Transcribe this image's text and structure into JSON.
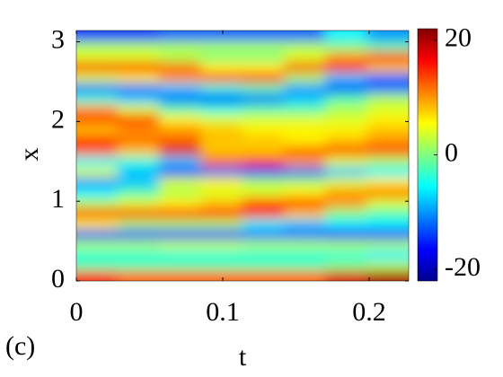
{
  "chart_data": {
    "type": "heatmap",
    "xlabel": "t",
    "ylabel": "x",
    "annotation": "(c)",
    "xlim": [
      0,
      0.227
    ],
    "ylim": [
      0,
      3.1416
    ],
    "xticks": [
      0,
      0.1,
      0.2
    ],
    "yticks": [
      0,
      1,
      2,
      3
    ],
    "clim": [
      -22,
      22
    ],
    "cticks": [
      -20,
      0,
      20
    ],
    "colormap": "jet",
    "x": [
      0.014,
      0.042,
      0.071,
      0.099,
      0.128,
      0.156,
      0.184,
      0.213
    ],
    "y": [
      0.065,
      0.196,
      0.327,
      0.458,
      0.589,
      0.72,
      0.851,
      0.982,
      1.113,
      1.244,
      1.374,
      1.505,
      1.636,
      1.767,
      1.898,
      2.029,
      2.16,
      2.291,
      2.422,
      2.553,
      2.683,
      2.814,
      2.945,
      3.076
    ],
    "z": [
      [
        15,
        12,
        12,
        12,
        12,
        12,
        18,
        20
      ],
      [
        -2,
        -2,
        -2,
        -2,
        -2,
        -2,
        0,
        2
      ],
      [
        -4,
        -4,
        -4,
        -4,
        -4,
        -4,
        -4,
        -6
      ],
      [
        2,
        2,
        3,
        3,
        2,
        2,
        2,
        2
      ],
      [
        -14,
        -14,
        -14,
        -14,
        -12,
        -12,
        -16,
        -16
      ],
      [
        6,
        2,
        2,
        2,
        -6,
        -8,
        -6,
        -6
      ],
      [
        14,
        16,
        16,
        16,
        14,
        8,
        0,
        -2
      ],
      [
        2,
        4,
        6,
        8,
        14,
        16,
        10,
        4
      ],
      [
        -6,
        -2,
        2,
        4,
        4,
        6,
        10,
        12
      ],
      [
        -10,
        -8,
        4,
        6,
        2,
        2,
        4,
        6
      ],
      [
        4,
        -8,
        -14,
        -12,
        -14,
        -12,
        -8,
        -6
      ],
      [
        -6,
        -4,
        -8,
        12,
        14,
        10,
        4,
        2
      ],
      [
        12,
        8,
        18,
        8,
        8,
        12,
        14,
        14
      ],
      [
        16,
        12,
        12,
        8,
        8,
        6,
        8,
        10
      ],
      [
        8,
        10,
        10,
        8,
        6,
        6,
        6,
        8
      ],
      [
        14,
        16,
        6,
        4,
        4,
        4,
        4,
        6
      ],
      [
        10,
        4,
        -2,
        -4,
        -2,
        -2,
        2,
        4
      ],
      [
        -4,
        -8,
        -12,
        -14,
        -12,
        -8,
        -2,
        2
      ],
      [
        -12,
        -12,
        -8,
        -4,
        -2,
        -10,
        -14,
        -12
      ],
      [
        4,
        6,
        10,
        14,
        16,
        2,
        -8,
        -12
      ],
      [
        16,
        16,
        12,
        6,
        6,
        14,
        16,
        8
      ],
      [
        4,
        4,
        2,
        0,
        0,
        4,
        10,
        16
      ],
      [
        2,
        2,
        2,
        2,
        2,
        2,
        0,
        -2
      ],
      [
        -14,
        -14,
        -12,
        -12,
        -12,
        -12,
        -6,
        -10
      ]
    ]
  }
}
